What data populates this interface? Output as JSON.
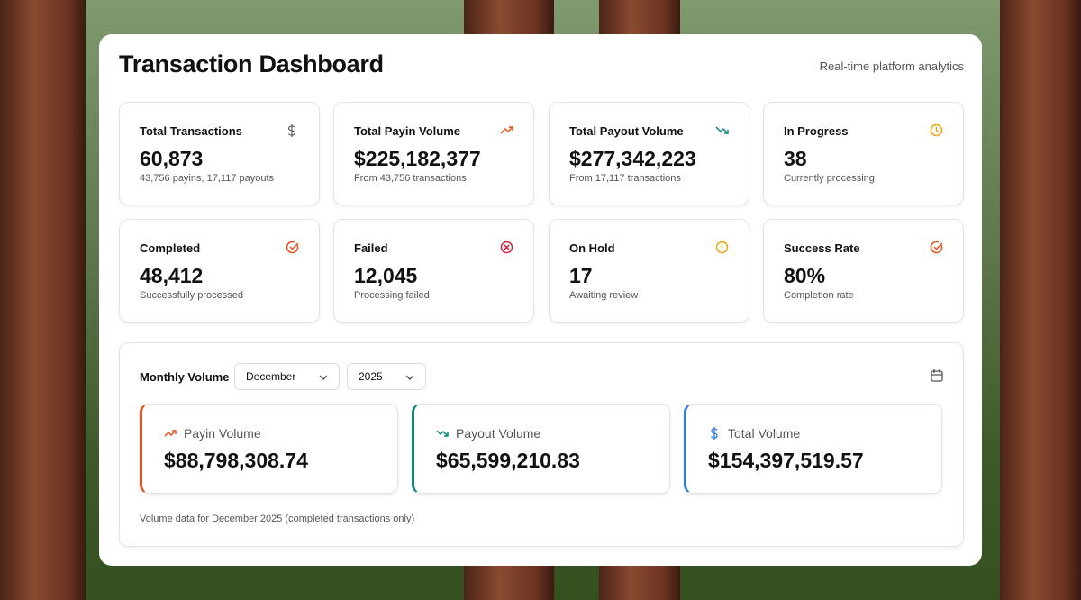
{
  "header": {
    "title": "Transaction Dashboard",
    "subtitle": "Real-time platform analytics"
  },
  "stats": [
    {
      "label": "Total Transactions",
      "value": "60,873",
      "note": "43,756 payins, 17,117 payouts"
    },
    {
      "label": "Total Payin Volume",
      "value": "$225,182,377",
      "note": "From 43,756 transactions"
    },
    {
      "label": "Total Payout Volume",
      "value": "$277,342,223",
      "note": "From 17,117 transactions"
    },
    {
      "label": "In Progress",
      "value": "38",
      "note": "Currently processing"
    },
    {
      "label": "Completed",
      "value": "48,412",
      "note": "Successfully processed"
    },
    {
      "label": "Failed",
      "value": "12,045",
      "note": "Processing failed"
    },
    {
      "label": "On Hold",
      "value": "17",
      "note": "Awaiting review"
    },
    {
      "label": "Success Rate",
      "value": "80%",
      "note": "Completion rate"
    }
  ],
  "monthly": {
    "label": "Monthly Volume",
    "month": "December",
    "year": "2025",
    "cards": [
      {
        "label": "Payin Volume",
        "value": "$88,798,308.74"
      },
      {
        "label": "Payout Volume",
        "value": "$65,599,210.83"
      },
      {
        "label": "Total Volume",
        "value": "$154,397,519.57"
      }
    ],
    "note": "Volume data for December 2025 (completed transactions only)"
  }
}
